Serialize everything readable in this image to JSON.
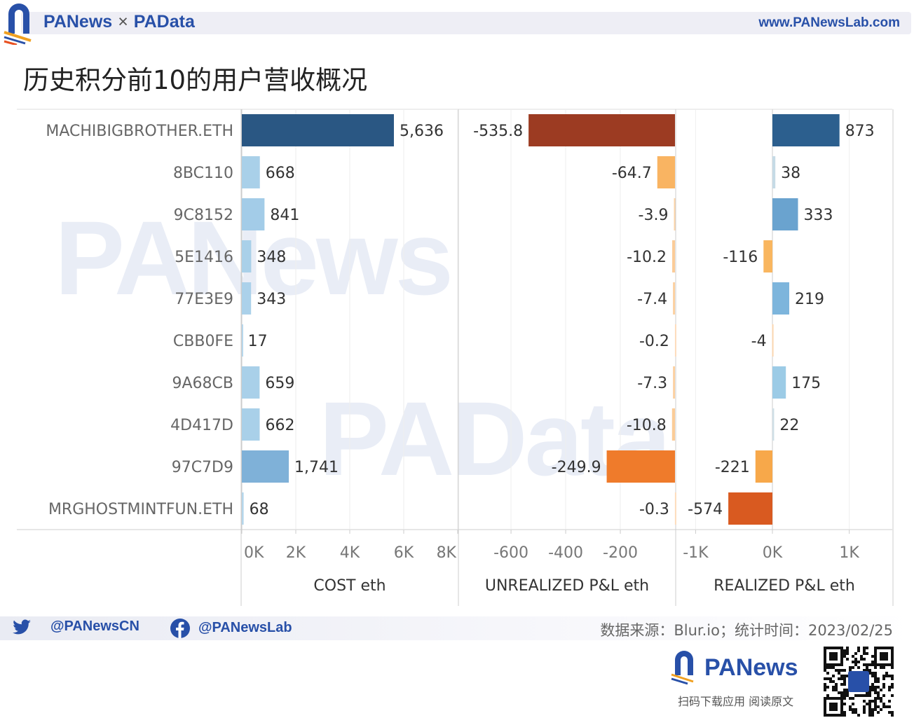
{
  "header": {
    "brand_left": "PANews",
    "times": "×",
    "brand_right": "PAData",
    "website": "www.PANewsLab.com"
  },
  "title": "历史积分前10的用户营收概况",
  "watermarks": [
    "PANews",
    "PAData"
  ],
  "chart_data": [
    {
      "type": "bar",
      "orientation": "horizontal",
      "title": "",
      "xlabel": "COST eth",
      "xlim": [
        0,
        8000
      ],
      "ticks": [
        0,
        2000,
        4000,
        6000,
        8000
      ],
      "tick_labels": [
        "0K",
        "2K",
        "4K",
        "6K",
        "8K"
      ],
      "categories": [
        "MACHIBIGBROTHER.ETH",
        "8BC110",
        "9C8152",
        "5E1416",
        "77E3E9",
        "CBB0FE",
        "9A68CB",
        "4D417D",
        "97C7D9",
        "MRGHOSTMINTFUN.ETH"
      ],
      "values": [
        5636,
        668,
        841,
        348,
        343,
        17,
        659,
        662,
        1741,
        68
      ],
      "labels": [
        "5,636",
        "668",
        "841",
        "348",
        "343",
        "17",
        "659",
        "662",
        "1,741",
        "68"
      ],
      "colors": [
        "#2a5783",
        "#a9d0e9",
        "#a3cce8",
        "#a9d0e9",
        "#abd1ea",
        "#b8d8ec",
        "#a9d0e9",
        "#a9d0e9",
        "#7fb1d8",
        "#b5d6eb"
      ]
    },
    {
      "type": "bar",
      "orientation": "horizontal",
      "xlabel": "UNREALIZED P&L eth",
      "xlim": [
        -790,
        0
      ],
      "ticks": [
        -600,
        -400,
        -200
      ],
      "tick_labels": [
        "-600",
        "-400",
        "-200"
      ],
      "values": [
        -535.8,
        -64.7,
        -3.9,
        -10.2,
        -7.4,
        -0.2,
        -7.3,
        -10.8,
        -249.9,
        -0.3
      ],
      "labels": [
        "-535.8",
        "-64.7",
        "-3.9",
        "-10.2",
        "-7.4",
        "-0.2",
        "-7.3",
        "-10.8",
        "-249.9",
        "-0.3"
      ],
      "colors": [
        "#9c3b22",
        "#f9b462",
        "#fcd4a8",
        "#fbcc98",
        "#fcd0a0",
        "#fddcbc",
        "#fcd0a0",
        "#fbcc98",
        "#ef7b2b",
        "#fddcbc"
      ]
    },
    {
      "type": "bar",
      "orientation": "horizontal",
      "xlabel": "REALIZED P&L eth",
      "xlim": [
        -1250,
        1560
      ],
      "ticks": [
        -1000,
        0,
        1000
      ],
      "tick_labels": [
        "-1K",
        "0K",
        "1K"
      ],
      "values": [
        873,
        38,
        333,
        -116,
        219,
        -4,
        175,
        22,
        -221,
        -574
      ],
      "labels": [
        "873",
        "38",
        "333",
        "-116",
        "219",
        "-4",
        "175",
        "22",
        "-221",
        "-574"
      ],
      "colors": [
        "#2c5f8e",
        "#c6dbe6",
        "#6aa3cf",
        "#f9b65f",
        "#7db5dc",
        "#fbd7b0",
        "#9ccbe6",
        "#cfdfe6",
        "#f7a84a",
        "#d95a20"
      ]
    }
  ],
  "footer": {
    "twitter": "@PANewsCN",
    "facebook": "@PANewsLab",
    "source": "数据来源：Blur.io；统计时间：2023/02/25",
    "logo": "PANews",
    "scan_text": "扫码下载应用  阅读原文"
  }
}
